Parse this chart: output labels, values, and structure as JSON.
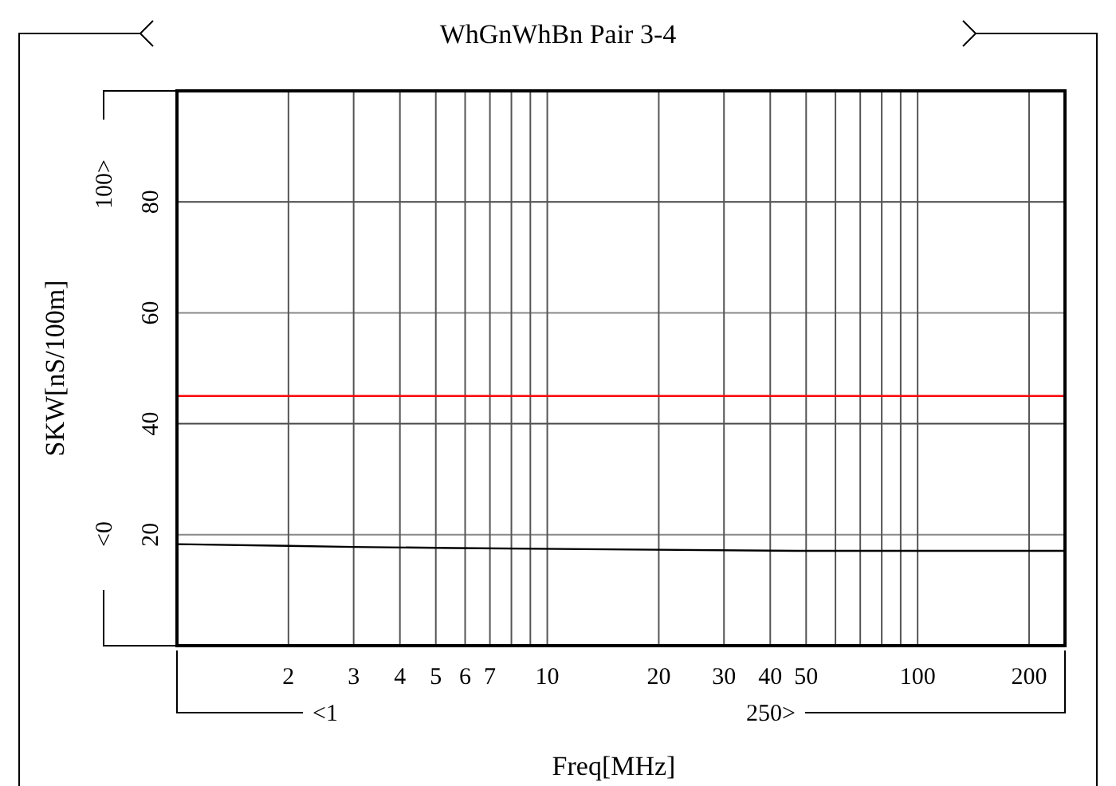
{
  "chart_data": {
    "type": "line",
    "title": "WhGnWhBn Pair 3-4",
    "xlabel": "Freq[MHz]",
    "ylabel": "SKW[nS/100m]",
    "x": [
      1,
      2,
      3,
      5.6,
      12.5,
      47,
      250
    ],
    "series": [
      {
        "color": "#000000",
        "values": [
          18.3,
          18.0,
          17.8,
          17.6,
          17.4,
          17.1,
          17.1
        ]
      }
    ],
    "ref_lines": [
      {
        "axis": "y",
        "value": 45,
        "color": "#ff0000"
      }
    ],
    "log": "x",
    "xlim": [
      1,
      250
    ],
    "ylim": [
      0,
      100
    ],
    "xticks": [
      2,
      3,
      4,
      5,
      6,
      7,
      {
        "value": 8,
        "label": null
      },
      {
        "value": 9,
        "label": null
      },
      10,
      20,
      30,
      40,
      50,
      {
        "value": 60,
        "label": null
      },
      {
        "value": 70,
        "label": null
      },
      {
        "value": 80,
        "label": null
      },
      {
        "value": 90,
        "label": null
      },
      100,
      200
    ],
    "yticks": [
      20,
      40,
      60,
      80
    ],
    "annotations": [
      "<1",
      "250>",
      "<0",
      "100>"
    ],
    "grid": true
  }
}
